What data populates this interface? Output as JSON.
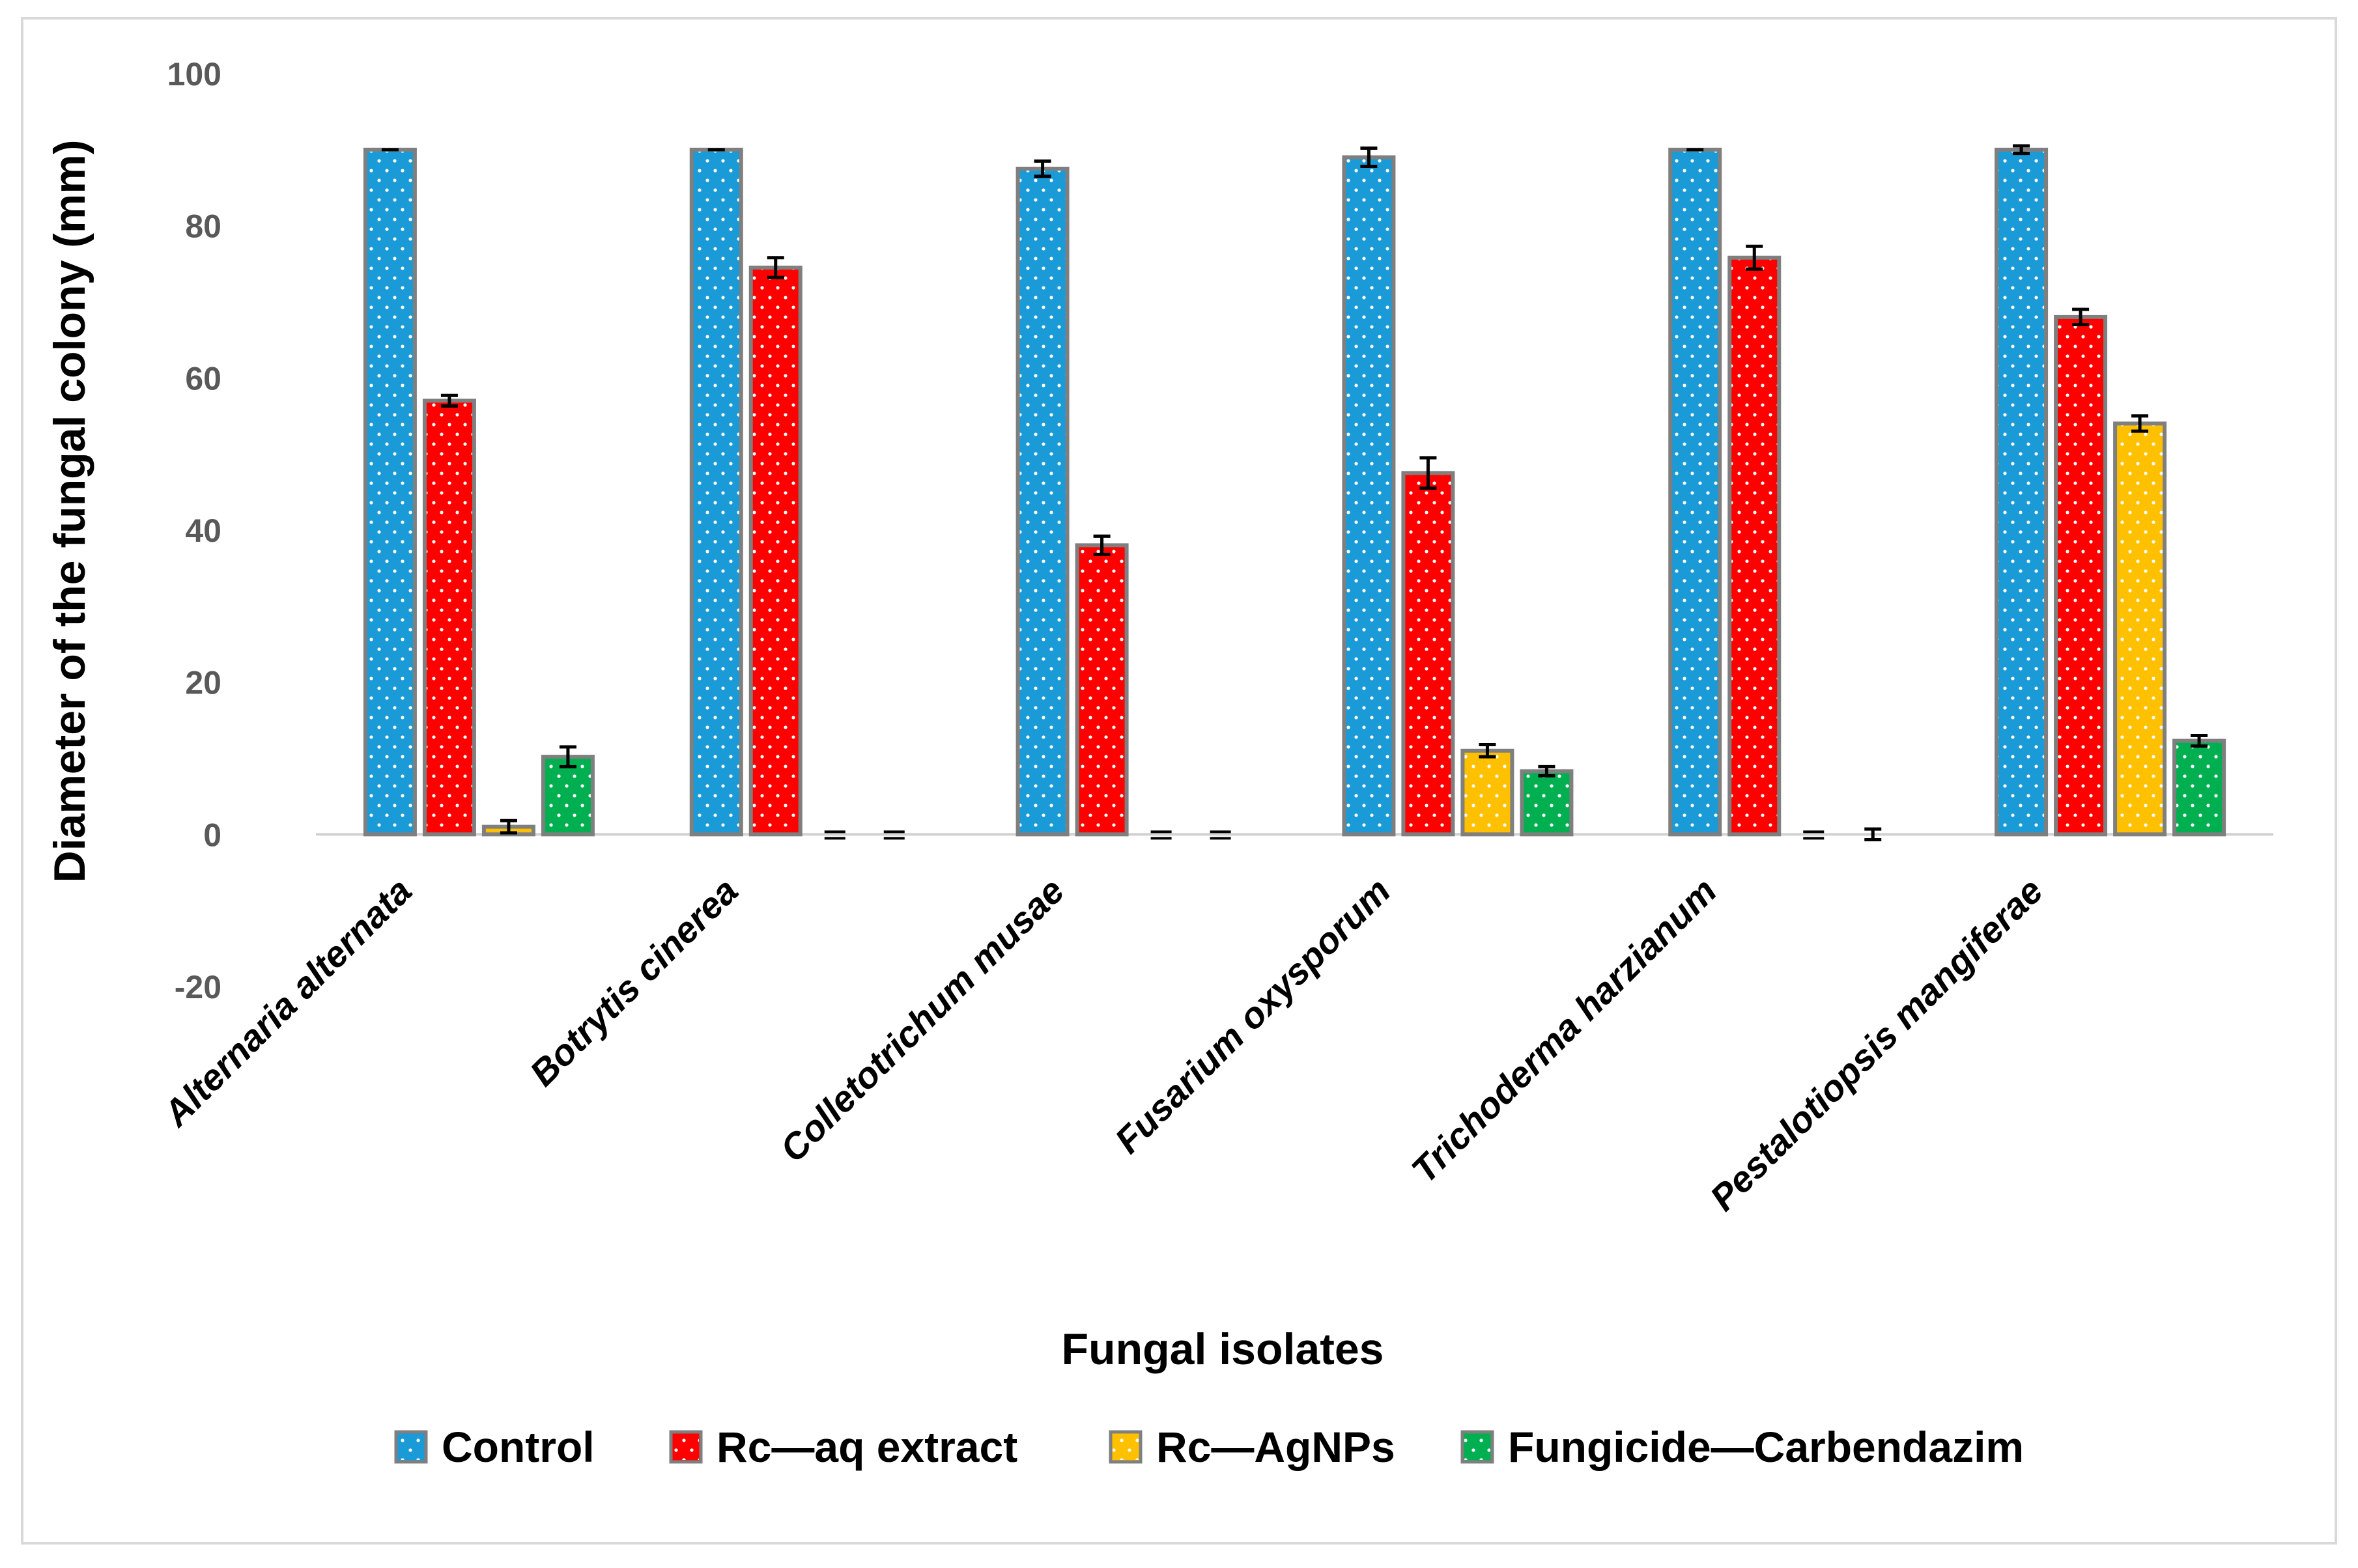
{
  "chart_data": {
    "type": "bar",
    "title": "",
    "xlabel": "Fungal isolates",
    "ylabel": "Diameter of the fungal colony (mm)",
    "ylim": [
      -20,
      100
    ],
    "yticks": [
      100,
      80,
      60,
      40,
      20,
      0,
      -20
    ],
    "grid": false,
    "legend_position": "bottom",
    "categories": [
      "Alternaria alternata",
      "Botrytis cinerea",
      "Colletotrichum musae",
      "Fusarium oxysporum",
      "Trichoderma harzianum",
      "Pestalotiopsis mangiferae"
    ],
    "series": [
      {
        "name": "Control",
        "color": "#1a9ad6",
        "values": [
          90,
          90,
          87.5,
          89,
          90,
          90
        ],
        "errors": [
          0,
          0,
          1,
          1.2,
          0,
          0.5
        ]
      },
      {
        "name": "Rc—aq extract",
        "color": "#ff0000",
        "values": [
          57,
          74.5,
          38,
          47.5,
          75.8,
          68
        ],
        "errors": [
          0.7,
          1.3,
          1.2,
          2,
          1.5,
          1
        ]
      },
      {
        "name": "Rc—AgNPs",
        "color": "#ffc000",
        "values": [
          1,
          0,
          0,
          11,
          0,
          54
        ],
        "errors": [
          0.8,
          0,
          0,
          0.8,
          0,
          1
        ]
      },
      {
        "name": "Fungicide—Carbendazim",
        "color": "#00b050",
        "values": [
          10.2,
          0,
          0,
          8.3,
          0,
          12.3
        ],
        "errors": [
          1.3,
          0,
          0,
          0.6,
          0.7,
          0.7
        ]
      }
    ]
  }
}
